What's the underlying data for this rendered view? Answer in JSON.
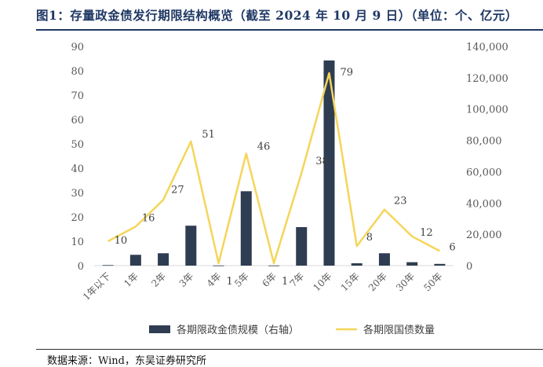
{
  "title": "图1：存量政金债发行期限结构概览（截至 2024 年 10 月 9 日）（单位：个、亿元）",
  "source": "数据来源：Wind，东吴证券研究所",
  "colors": {
    "bar": "#2f3d52",
    "line": "#f5d55a",
    "title": "#1f3864"
  },
  "chart_data": {
    "type": "bar+line",
    "categories": [
      "1年以下",
      "1年",
      "2年",
      "3年",
      "4年",
      "5年",
      "6年",
      "7年",
      "10年",
      "15年",
      "20年",
      "30年",
      "50年"
    ],
    "series": [
      {
        "name": "各期限政金债规模（右轴）",
        "type": "bar",
        "axis": "right",
        "values": [
          350,
          6900,
          7900,
          25500,
          100,
          47500,
          100,
          24600,
          131000,
          1500,
          7900,
          2200,
          1100
        ]
      },
      {
        "name": "各期限国债数量",
        "type": "line",
        "axis": "left",
        "values": [
          10,
          16,
          27,
          51,
          1,
          46,
          1,
          38,
          79,
          8,
          23,
          12,
          6
        ],
        "labels": [
          "10",
          "16",
          "27",
          "51",
          "1",
          "46",
          "1",
          "38",
          "79",
          "8",
          "23",
          "12",
          "6"
        ]
      }
    ],
    "left_axis": {
      "ylim": [
        0,
        90
      ],
      "ticks": [
        "0",
        "10",
        "20",
        "30",
        "40",
        "50",
        "60",
        "70",
        "80",
        "90"
      ]
    },
    "right_axis": {
      "ylim": [
        0,
        140000
      ],
      "ticks": [
        "0",
        "20,000",
        "40,000",
        "60,000",
        "80,000",
        "100,000",
        "120,000",
        "140,000"
      ]
    },
    "legend": {
      "position": "bottom",
      "items": [
        "各期限政金债规模（右轴）",
        "各期限国债数量"
      ]
    },
    "grid": false
  }
}
